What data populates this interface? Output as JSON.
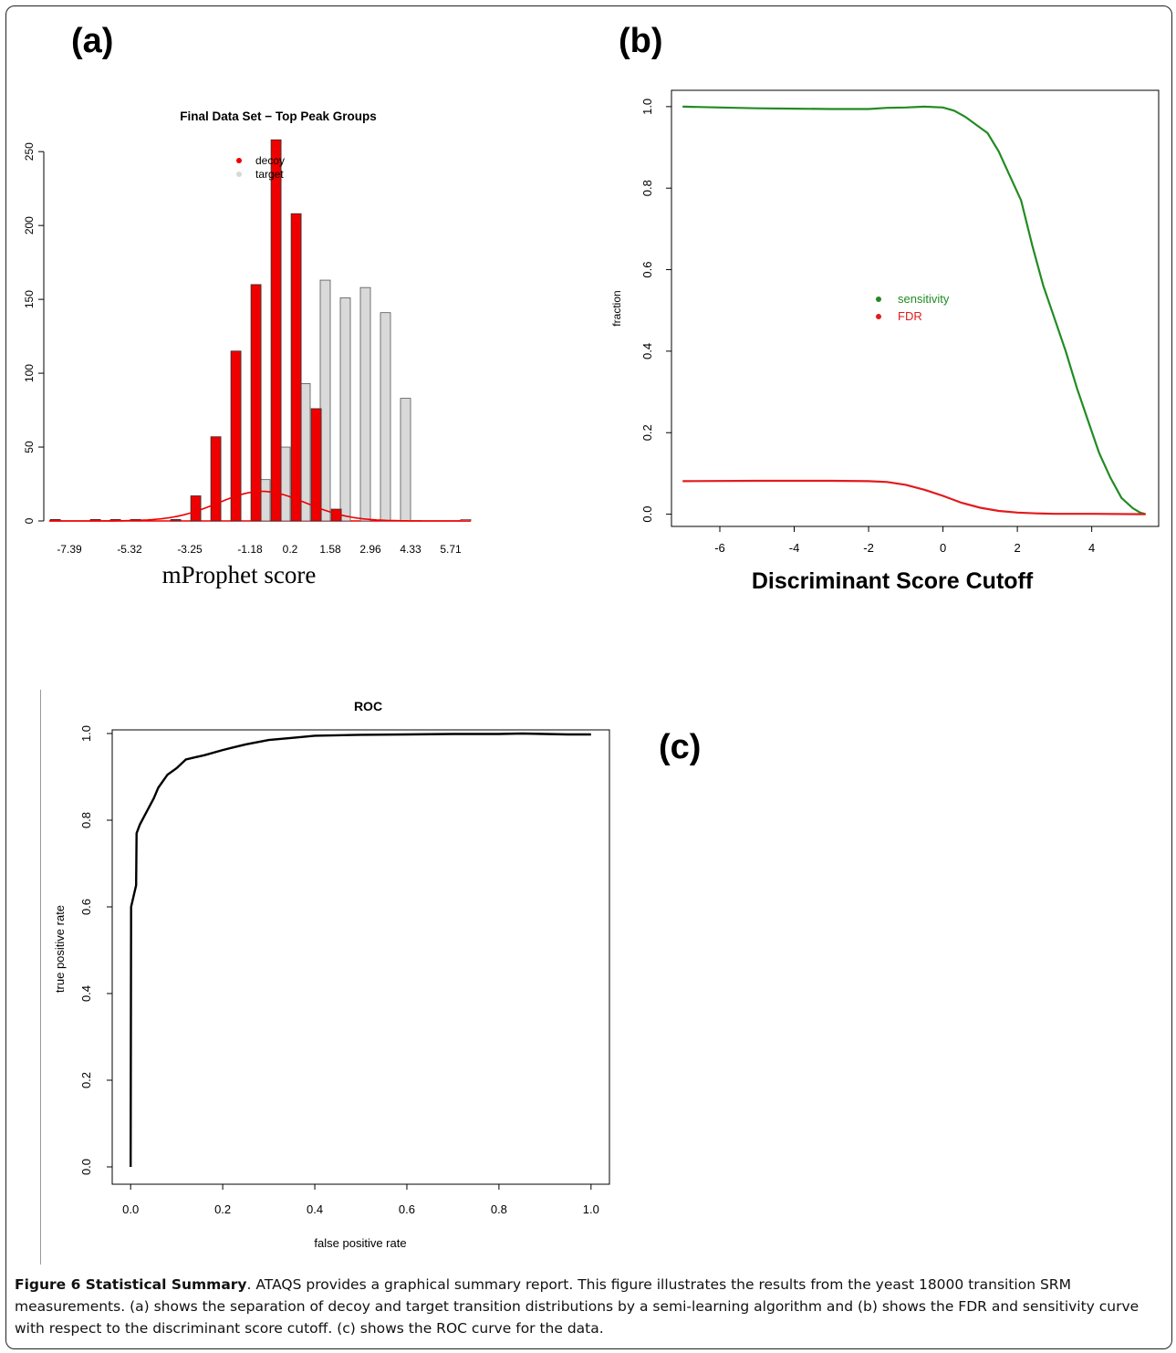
{
  "panel_labels": {
    "a": "(a)",
    "b": "(b)",
    "c": "(c)"
  },
  "caption": {
    "figure_label": "Figure 6 Statistical Summary",
    "text": ". ATAQS provides a graphical summary report. This figure illustrates the results from the yeast 18000 transition SRM measurements. (a) shows the separation of decoy and target transition distributions by a semi-learning algorithm and (b) shows the FDR and sensitivity curve with respect to the discriminant score cutoff. (c) shows the ROC curve for the data."
  },
  "colors": {
    "decoy": "#ee0000",
    "target": "#d9d9d9",
    "sensitivity": "#228b22",
    "fdr": "#e31a1c",
    "roc": "#000000"
  },
  "chart_data": [
    {
      "id": "a",
      "type": "bar",
      "title": "Final Data Set − Top Peak Groups",
      "xlabel": "mProphet score",
      "ylabel": "",
      "ylim": [
        0,
        260
      ],
      "yticks": [
        0,
        50,
        100,
        150,
        200,
        250
      ],
      "xtick_labels": [
        "-7.39",
        "-5.32",
        "-3.25",
        "-1.18",
        "0.2",
        "1.58",
        "2.96",
        "4.33",
        "5.71"
      ],
      "xtick_bins": [
        1,
        4,
        7,
        10,
        12,
        14,
        16,
        18,
        20
      ],
      "bins": 21,
      "legend": {
        "placement": "top-center",
        "entries": [
          "decoy",
          "target"
        ]
      },
      "series": [
        {
          "name": "decoy",
          "values": [
            1,
            0,
            1,
            1,
            1,
            0,
            1,
            17,
            57,
            115,
            160,
            258,
            208,
            76,
            8,
            0,
            0,
            0,
            0,
            0,
            0
          ]
        },
        {
          "name": "target",
          "values": [
            0,
            0,
            0,
            0,
            0,
            0,
            0,
            0,
            0,
            0,
            28,
            50,
            93,
            163,
            151,
            158,
            141,
            83,
            0,
            0,
            1
          ]
        }
      ],
      "fit_curve": {
        "name": "decoy fit",
        "peak_bin": 10.6,
        "peak": 20,
        "sigma_bins": 2.2
      }
    },
    {
      "id": "b",
      "type": "line",
      "title": "",
      "xlabel": "Discriminant Score Cutoff",
      "ylabel": "fraction",
      "xlim": [
        -7.3,
        5.8
      ],
      "ylim": [
        -0.03,
        1.04
      ],
      "xticks": [
        -6,
        -4,
        -2,
        0,
        2,
        4
      ],
      "yticks": [
        0.0,
        0.2,
        0.4,
        0.6,
        0.8,
        1.0
      ],
      "legend": {
        "placement": "center",
        "entries": [
          "sensitivity",
          "FDR"
        ]
      },
      "series": [
        {
          "name": "sensitivity",
          "x": [
            -7.0,
            -6.0,
            -5.0,
            -4.0,
            -3.0,
            -2.0,
            -1.5,
            -1.0,
            -0.5,
            0.0,
            0.3,
            0.6,
            0.9,
            1.2,
            1.5,
            1.8,
            2.1,
            2.4,
            2.7,
            3.0,
            3.3,
            3.6,
            3.9,
            4.2,
            4.5,
            4.8,
            5.1,
            5.3,
            5.45
          ],
          "y": [
            1.0,
            0.998,
            0.996,
            0.995,
            0.994,
            0.994,
            0.997,
            0.998,
            1.0,
            0.998,
            0.99,
            0.975,
            0.955,
            0.935,
            0.89,
            0.83,
            0.77,
            0.66,
            0.56,
            0.48,
            0.4,
            0.31,
            0.23,
            0.15,
            0.09,
            0.04,
            0.015,
            0.004,
            0.0
          ]
        },
        {
          "name": "FDR",
          "x": [
            -7.0,
            -5.0,
            -3.0,
            -2.0,
            -1.5,
            -1.0,
            -0.5,
            0.0,
            0.5,
            1.0,
            1.5,
            2.0,
            2.5,
            3.0,
            4.0,
            5.45
          ],
          "y": [
            0.081,
            0.082,
            0.082,
            0.081,
            0.079,
            0.072,
            0.06,
            0.045,
            0.028,
            0.016,
            0.008,
            0.004,
            0.002,
            0.001,
            0.001,
            0.0
          ]
        }
      ]
    },
    {
      "id": "c",
      "type": "line",
      "title": "ROC",
      "xlabel": "false positive rate",
      "ylabel": "true positive rate",
      "xlim": [
        -0.04,
        1.04
      ],
      "ylim": [
        -0.04,
        1.04
      ],
      "xticks": [
        0.0,
        0.2,
        0.4,
        0.6,
        0.8,
        1.0
      ],
      "yticks": [
        0.0,
        0.2,
        0.4,
        0.6,
        0.8,
        1.0
      ],
      "series": [
        {
          "name": "ROC",
          "x": [
            0.0,
            0.001,
            0.012,
            0.013,
            0.02,
            0.03,
            0.05,
            0.06,
            0.08,
            0.1,
            0.12,
            0.14,
            0.16,
            0.2,
            0.25,
            0.3,
            0.35,
            0.4,
            0.45,
            0.5,
            0.6,
            0.7,
            0.8,
            0.85,
            0.9,
            0.95,
            1.0
          ],
          "y": [
            0.0,
            0.6,
            0.65,
            0.77,
            0.79,
            0.81,
            0.85,
            0.875,
            0.905,
            0.92,
            0.94,
            0.945,
            0.95,
            0.962,
            0.975,
            0.985,
            0.99,
            0.995,
            0.996,
            0.997,
            0.998,
            0.999,
            0.999,
            1.0,
            0.999,
            0.998,
            0.998
          ]
        }
      ]
    }
  ]
}
